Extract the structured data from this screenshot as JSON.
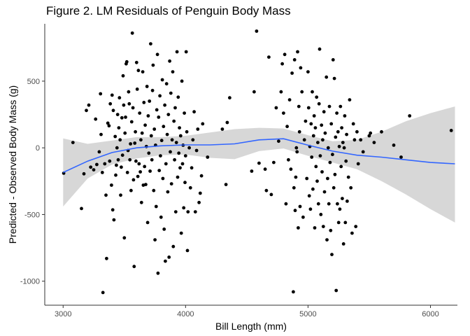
{
  "chart_data": {
    "type": "scatter",
    "title": "Figure 2.  LM Residuals of Penguin Body Mass",
    "xlabel": "Bill Length (mm)",
    "ylabel": "Predicted - Observed Body Mass (g)",
    "xlim": [
      2850,
      6220
    ],
    "ylim": [
      -1180,
      930
    ],
    "xticks": [
      3000,
      4000,
      5000,
      6000
    ],
    "yticks": [
      -1000,
      -500,
      0,
      500
    ],
    "grid": false,
    "legend": "none",
    "colors": {
      "points": "#000000",
      "smooth_line": "#3366ff",
      "ribbon": "#d3d3d3",
      "axis": "#333333"
    },
    "smooth": {
      "x": [
        3000,
        3200,
        3400,
        3600,
        3800,
        4000,
        4200,
        4400,
        4600,
        4800,
        5000,
        5200,
        5400,
        5600,
        5800,
        6000,
        6200
      ],
      "y": [
        -185,
        -100,
        -35,
        0,
        15,
        22,
        22,
        30,
        60,
        68,
        20,
        -25,
        -55,
        -70,
        -90,
        -110,
        -120
      ],
      "lower": [
        -440,
        -230,
        -125,
        -80,
        -55,
        -50,
        -75,
        -85,
        -25,
        -5,
        -60,
        -110,
        -160,
        -250,
        -350,
        -460,
        -560
      ],
      "upper": [
        70,
        30,
        55,
        80,
        80,
        90,
        115,
        140,
        150,
        145,
        95,
        50,
        60,
        120,
        200,
        260,
        310
      ]
    },
    "points": [
      [
        3005,
        -190
      ],
      [
        3080,
        40
      ],
      [
        3150,
        -455
      ],
      [
        3170,
        -195
      ],
      [
        3190,
        280
      ],
      [
        3210,
        320
      ],
      [
        3225,
        -145
      ],
      [
        3250,
        -165
      ],
      [
        3265,
        215
      ],
      [
        3275,
        -125
      ],
      [
        3295,
        -30
      ],
      [
        3305,
        405
      ],
      [
        3310,
        100
      ],
      [
        3320,
        -185
      ],
      [
        3325,
        -1085
      ],
      [
        3340,
        -120
      ],
      [
        3350,
        -355
      ],
      [
        3355,
        -830
      ],
      [
        3365,
        185
      ],
      [
        3375,
        165
      ],
      [
        3380,
        -100
      ],
      [
        3385,
        330
      ],
      [
        3395,
        -280
      ],
      [
        3400,
        395
      ],
      [
        3405,
        -465
      ],
      [
        3410,
        280
      ],
      [
        3415,
        -540
      ],
      [
        3425,
        85
      ],
      [
        3430,
        -205
      ],
      [
        3435,
        -130
      ],
      [
        3440,
        0
      ],
      [
        3445,
        250
      ],
      [
        3450,
        -90
      ],
      [
        3455,
        150
      ],
      [
        3460,
        375
      ],
      [
        3465,
        60
      ],
      [
        3470,
        -355
      ],
      [
        3475,
        -145
      ],
      [
        3480,
        225
      ],
      [
        3485,
        -55
      ],
      [
        3490,
        540
      ],
      [
        3495,
        320
      ],
      [
        3500,
        -675
      ],
      [
        3505,
        110
      ],
      [
        3510,
        230
      ],
      [
        3515,
        630
      ],
      [
        3520,
        645
      ],
      [
        3525,
        -185
      ],
      [
        3530,
        -20
      ],
      [
        3535,
        420
      ],
      [
        3540,
        330
      ],
      [
        3545,
        -90
      ],
      [
        3550,
        30
      ],
      [
        3555,
        -320
      ],
      [
        3560,
        195
      ],
      [
        3565,
        860
      ],
      [
        3570,
        300
      ],
      [
        3575,
        -240
      ],
      [
        3580,
        -890
      ],
      [
        3585,
        35
      ],
      [
        3590,
        120
      ],
      [
        3595,
        -100
      ],
      [
        3600,
        640
      ],
      [
        3605,
        440
      ],
      [
        3610,
        -215
      ],
      [
        3615,
        580
      ],
      [
        3620,
        -120
      ],
      [
        3625,
        260
      ],
      [
        3630,
        -180
      ],
      [
        3635,
        60
      ],
      [
        3640,
        -410
      ],
      [
        3645,
        110
      ],
      [
        3650,
        570
      ],
      [
        3655,
        -280
      ],
      [
        3660,
        340
      ],
      [
        3665,
        -140
      ],
      [
        3670,
        170
      ],
      [
        3675,
        -275
      ],
      [
        3680,
        10
      ],
      [
        3685,
        460
      ],
      [
        3690,
        -560
      ],
      [
        3695,
        240
      ],
      [
        3700,
        -40
      ],
      [
        3705,
        350
      ],
      [
        3710,
        -175
      ],
      [
        3715,
        780
      ],
      [
        3720,
        90
      ],
      [
        3725,
        -90
      ],
      [
        3730,
        430
      ],
      [
        3735,
        620
      ],
      [
        3740,
        -320
      ],
      [
        3745,
        140
      ],
      [
        3750,
        -690
      ],
      [
        3755,
        20
      ],
      [
        3760,
        -440
      ],
      [
        3765,
        285
      ],
      [
        3770,
        700
      ],
      [
        3775,
        -940
      ],
      [
        3780,
        230
      ],
      [
        3785,
        -170
      ],
      [
        3790,
        390
      ],
      [
        3795,
        -60
      ],
      [
        3800,
        -520
      ],
      [
        3805,
        55
      ],
      [
        3810,
        510
      ],
      [
        3815,
        -230
      ],
      [
        3820,
        160
      ],
      [
        3825,
        -610
      ],
      [
        3830,
        320
      ],
      [
        3835,
        -850
      ],
      [
        3840,
        -120
      ],
      [
        3845,
        480
      ],
      [
        3850,
        100
      ],
      [
        3855,
        -330
      ],
      [
        3860,
        250
      ],
      [
        3865,
        -820
      ],
      [
        3870,
        650
      ],
      [
        3875,
        -30
      ],
      [
        3880,
        410
      ],
      [
        3885,
        -270
      ],
      [
        3890,
        60
      ],
      [
        3895,
        570
      ],
      [
        3900,
        -740
      ],
      [
        3905,
        200
      ],
      [
        3910,
        -90
      ],
      [
        3915,
        300
      ],
      [
        3920,
        -480
      ],
      [
        3925,
        40
      ],
      [
        3930,
        720
      ],
      [
        3935,
        -220
      ],
      [
        3940,
        380
      ],
      [
        3945,
        -40
      ],
      [
        3950,
        150
      ],
      [
        3955,
        -150
      ],
      [
        3960,
        90
      ],
      [
        3965,
        -640
      ],
      [
        3970,
        500
      ],
      [
        3975,
        -120
      ],
      [
        3980,
        20
      ],
      [
        3985,
        -450
      ],
      [
        3990,
        260
      ],
      [
        3995,
        -260
      ],
      [
        4000,
        -60
      ],
      [
        4005,
        720
      ],
      [
        4010,
        120
      ],
      [
        4015,
        -770
      ],
      [
        4020,
        -480
      ],
      [
        4030,
        0
      ],
      [
        4040,
        -300
      ],
      [
        4050,
        -150
      ],
      [
        4060,
        60
      ],
      [
        4070,
        270
      ],
      [
        4080,
        -480
      ],
      [
        4090,
        -20
      ],
      [
        4100,
        140
      ],
      [
        4110,
        -410
      ],
      [
        4120,
        -340
      ],
      [
        4130,
        -210
      ],
      [
        4140,
        180
      ],
      [
        4180,
        -70
      ],
      [
        4300,
        140
      ],
      [
        4330,
        -275
      ],
      [
        4340,
        190
      ],
      [
        4360,
        375
      ],
      [
        4540,
        -175
      ],
      [
        4560,
        420
      ],
      [
        4580,
        875
      ],
      [
        4600,
        -115
      ],
      [
        4650,
        -160
      ],
      [
        4660,
        -320
      ],
      [
        4680,
        680
      ],
      [
        4700,
        -350
      ],
      [
        4720,
        -110
      ],
      [
        4740,
        300
      ],
      [
        4760,
        50
      ],
      [
        4780,
        420
      ],
      [
        4790,
        630
      ],
      [
        4800,
        260
      ],
      [
        4810,
        700
      ],
      [
        4820,
        -420
      ],
      [
        4830,
        160
      ],
      [
        4840,
        -90
      ],
      [
        4850,
        360
      ],
      [
        4860,
        -160
      ],
      [
        4870,
        560
      ],
      [
        4880,
        -1080
      ],
      [
        4885,
        -300
      ],
      [
        4890,
        660
      ],
      [
        4895,
        -470
      ],
      [
        4900,
        -220
      ],
      [
        4905,
        0
      ],
      [
        4910,
        -30
      ],
      [
        4915,
        720
      ],
      [
        4920,
        -600
      ],
      [
        4925,
        310
      ],
      [
        4930,
        120
      ],
      [
        4935,
        -440
      ],
      [
        4940,
        600
      ],
      [
        4950,
        420
      ],
      [
        4960,
        -520
      ],
      [
        4970,
        60
      ],
      [
        4980,
        200
      ],
      [
        4990,
        -230
      ],
      [
        5000,
        570
      ],
      [
        5005,
        300
      ],
      [
        5010,
        -360
      ],
      [
        5015,
        10
      ],
      [
        5020,
        -460
      ],
      [
        5025,
        180
      ],
      [
        5030,
        -70
      ],
      [
        5035,
        420
      ],
      [
        5040,
        -310
      ],
      [
        5045,
        90
      ],
      [
        5050,
        240
      ],
      [
        5055,
        -600
      ],
      [
        5060,
        150
      ],
      [
        5065,
        -140
      ],
      [
        5070,
        380
      ],
      [
        5075,
        -250
      ],
      [
        5080,
        40
      ],
      [
        5085,
        -420
      ],
      [
        5090,
        330
      ],
      [
        5095,
        740
      ],
      [
        5100,
        -60
      ],
      [
        5105,
        -500
      ],
      [
        5110,
        170
      ],
      [
        5115,
        -180
      ],
      [
        5120,
        60
      ],
      [
        5125,
        -590
      ],
      [
        5130,
        270
      ],
      [
        5135,
        -330
      ],
      [
        5140,
        110
      ],
      [
        5150,
        530
      ],
      [
        5155,
        -690
      ],
      [
        5160,
        -230
      ],
      [
        5165,
        0
      ],
      [
        5170,
        -420
      ],
      [
        5175,
        310
      ],
      [
        5180,
        -110
      ],
      [
        5185,
        -620
      ],
      [
        5190,
        180
      ],
      [
        5195,
        -800
      ],
      [
        5200,
        -50
      ],
      [
        5205,
        660
      ],
      [
        5210,
        -300
      ],
      [
        5215,
        520
      ],
      [
        5220,
        -200
      ],
      [
        5225,
        80
      ],
      [
        5230,
        -1070
      ],
      [
        5235,
        260
      ],
      [
        5240,
        -420
      ],
      [
        5245,
        120
      ],
      [
        5250,
        -560
      ],
      [
        5255,
        10
      ],
      [
        5260,
        -460
      ],
      [
        5265,
        310
      ],
      [
        5270,
        -140
      ],
      [
        5275,
        150
      ],
      [
        5280,
        -380
      ],
      [
        5285,
        40
      ],
      [
        5290,
        -720
      ],
      [
        5295,
        0
      ],
      [
        5300,
        240
      ],
      [
        5305,
        -560
      ],
      [
        5310,
        -100
      ],
      [
        5315,
        100
      ],
      [
        5320,
        -400
      ],
      [
        5330,
        -220
      ],
      [
        5340,
        360
      ],
      [
        5350,
        -300
      ],
      [
        5360,
        -640
      ],
      [
        5370,
        180
      ],
      [
        5380,
        60
      ],
      [
        5390,
        -590
      ],
      [
        5400,
        120
      ],
      [
        5410,
        -120
      ],
      [
        5430,
        60
      ],
      [
        5450,
        -30
      ],
      [
        5500,
        90
      ],
      [
        5510,
        110
      ],
      [
        5540,
        40
      ],
      [
        5600,
        120
      ],
      [
        5700,
        20
      ],
      [
        5760,
        -70
      ],
      [
        5830,
        240
      ],
      [
        6170,
        130
      ]
    ]
  }
}
